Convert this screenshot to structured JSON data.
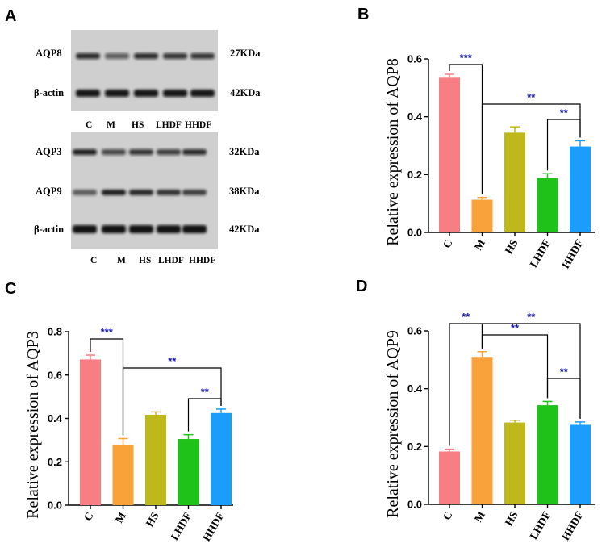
{
  "panels": {
    "A": "A",
    "B": "B",
    "C": "C",
    "D": "D"
  },
  "blot_top": {
    "rows": [
      {
        "protein": "AQP8",
        "size": "27KDa"
      },
      {
        "protein": "β-actin",
        "size": "42KDa"
      }
    ],
    "lanes": [
      "C",
      "M",
      "HS",
      "LHDF",
      "HHDF"
    ]
  },
  "blot_bottom": {
    "rows": [
      {
        "protein": "AQP3",
        "size": "32KDa"
      },
      {
        "protein": "AQP9",
        "size": "38KDa"
      },
      {
        "protein": "β-actin",
        "size": "42KDa"
      }
    ],
    "lanes": [
      "C",
      "M",
      "HS",
      "LHDF",
      "HHDF"
    ]
  },
  "colors": {
    "C": "#f77f83",
    "M": "#f9a23a",
    "HS": "#bfb81b",
    "LHDF": "#1fc219",
    "HHDF": "#1a9dfb",
    "significance": "#1a1aa6"
  },
  "chart_data": [
    {
      "panel": "B",
      "type": "bar",
      "ylabel": "Relative expression of AQP8",
      "categories": [
        "C",
        "M",
        "HS",
        "LHDF",
        "HHDF"
      ],
      "values": [
        0.535,
        0.113,
        0.345,
        0.188,
        0.297
      ],
      "errors": [
        0.012,
        0.008,
        0.02,
        0.015,
        0.02
      ],
      "ylim": [
        0,
        0.6
      ],
      "yticks": [
        "0.0",
        "0.2",
        "0.4",
        "0.6"
      ],
      "brackets": [
        {
          "from": "C",
          "to": "M",
          "label": "***"
        },
        {
          "from": "M",
          "to": "HHDF",
          "label": "**"
        },
        {
          "from": "LHDF",
          "to": "HHDF",
          "label": "**"
        }
      ]
    },
    {
      "panel": "C",
      "type": "bar",
      "ylabel": "Relative expression of AQP3",
      "categories": [
        "C",
        "M",
        "HS",
        "LHDF",
        "HHDF"
      ],
      "values": [
        0.672,
        0.277,
        0.417,
        0.305,
        0.425
      ],
      "errors": [
        0.02,
        0.03,
        0.013,
        0.02,
        0.018
      ],
      "ylim": [
        0,
        0.8
      ],
      "yticks": [
        "0.0",
        "0.2",
        "0.4",
        "0.6",
        "0.8"
      ],
      "brackets": [
        {
          "from": "C",
          "to": "M",
          "label": "***"
        },
        {
          "from": "M",
          "to": "HHDF",
          "label": "**"
        },
        {
          "from": "LHDF",
          "to": "HHDF",
          "label": "**"
        }
      ]
    },
    {
      "panel": "D",
      "type": "bar",
      "ylabel": "Relative expression of AQP9",
      "categories": [
        "C",
        "M",
        "HS",
        "LHDF",
        "HHDF"
      ],
      "values": [
        0.183,
        0.51,
        0.283,
        0.343,
        0.275
      ],
      "errors": [
        0.008,
        0.018,
        0.008,
        0.013,
        0.01
      ],
      "ylim": [
        0,
        0.6
      ],
      "yticks": [
        "0.0",
        "0.2",
        "0.4",
        "0.6"
      ],
      "brackets": [
        {
          "from": "C",
          "to": "M",
          "label": "**"
        },
        {
          "from": "M",
          "to": "LHDF",
          "label": "**"
        },
        {
          "from": "M",
          "to": "HHDF",
          "label": "**"
        },
        {
          "from": "LHDF",
          "to": "HHDF",
          "label": "**"
        }
      ]
    }
  ]
}
